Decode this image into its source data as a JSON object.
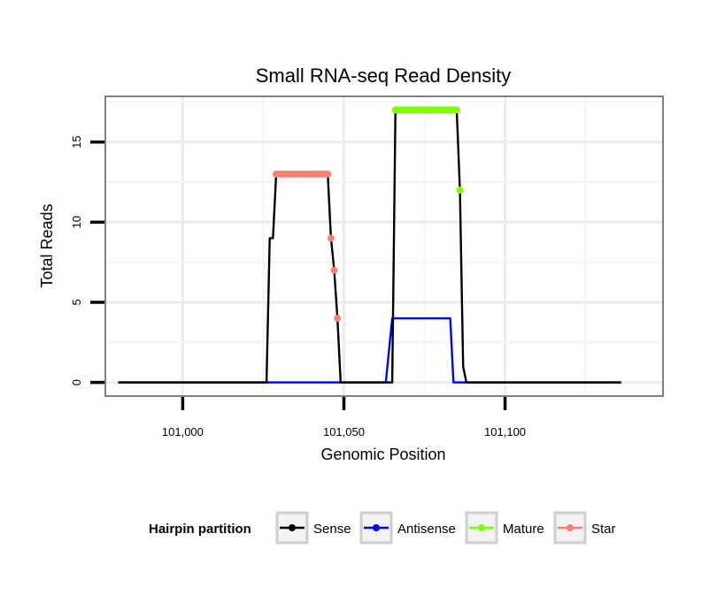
{
  "chart_data": {
    "type": "line",
    "title": "Small RNA-seq Read Density",
    "xlabel": "Genomic Position",
    "ylabel": "Total Reads",
    "xlim": [
      100976,
      101149
    ],
    "ylim": [
      -0.85,
      17.85
    ],
    "x_ticks": [
      101000,
      101050,
      101100
    ],
    "x_tick_labels": [
      "101,000",
      "101,050",
      "101,100"
    ],
    "y_ticks": [
      0,
      5,
      10,
      15
    ],
    "y_tick_labels": [
      "0",
      "5",
      "10",
      "15"
    ],
    "grid": true,
    "legend": {
      "position": "bottom",
      "title": "Hairpin partition",
      "entries": [
        {
          "label": "Sense",
          "color": "#000000"
        },
        {
          "label": "Antisense",
          "color": "#0000ff"
        },
        {
          "label": "Mature",
          "color": "#7fff00"
        },
        {
          "label": "Star",
          "color": "#fa8072"
        }
      ]
    },
    "series": [
      {
        "name": "Sense",
        "color": "#000000",
        "style": "line",
        "x": [
          100980,
          101026,
          101027,
          101028,
          101029,
          101045,
          101046,
          101047,
          101048,
          101049,
          101065,
          101066,
          101085,
          101086,
          101087,
          101088,
          101136
        ],
        "y": [
          0,
          0,
          9,
          9,
          13,
          13,
          9,
          7,
          4,
          0,
          0,
          17,
          17,
          12,
          1,
          0,
          0
        ]
      },
      {
        "name": "Antisense",
        "color": "#0000ff",
        "style": "line",
        "x": [
          100980,
          101063,
          101065,
          101083,
          101084,
          101136
        ],
        "y": [
          0,
          0,
          4,
          4,
          0,
          0
        ]
      },
      {
        "name": "Mature",
        "color": "#7fff00",
        "style": "line+points",
        "x": [
          101066,
          101067,
          101068,
          101069,
          101070,
          101071,
          101072,
          101073,
          101074,
          101075,
          101076,
          101077,
          101078,
          101079,
          101080,
          101081,
          101082,
          101083,
          101084,
          101085
        ],
        "y": [
          17,
          17,
          17,
          17,
          17,
          17,
          17,
          17,
          17,
          17,
          17,
          17,
          17,
          17,
          17,
          17,
          17,
          17,
          17,
          17
        ],
        "extra_points": {
          "x": [
            101086
          ],
          "y": [
            12
          ]
        }
      },
      {
        "name": "Star",
        "color": "#fa8072",
        "style": "line+points",
        "x": [
          101029,
          101030,
          101031,
          101032,
          101033,
          101034,
          101035,
          101036,
          101037,
          101038,
          101039,
          101040,
          101041,
          101042,
          101043,
          101044,
          101045
        ],
        "y": [
          13,
          13,
          13,
          13,
          13,
          13,
          13,
          13,
          13,
          13,
          13,
          13,
          13,
          13,
          13,
          13,
          13
        ],
        "extra_points": {
          "x": [
            101046,
            101047,
            101048
          ],
          "y": [
            9,
            7,
            4
          ]
        }
      }
    ]
  }
}
